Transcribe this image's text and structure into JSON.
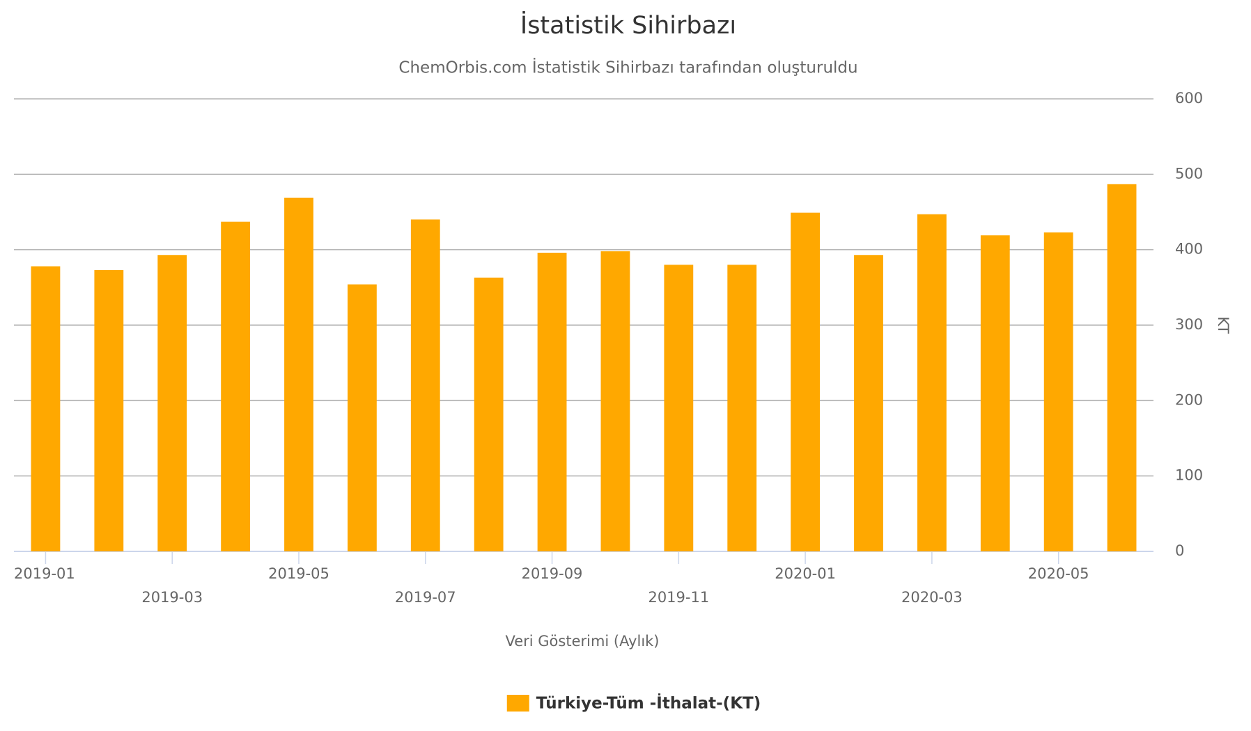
{
  "chart_data": {
    "type": "bar",
    "title": "İstatistik Sihirbazı",
    "subtitle": "ChemOrbis.com İstatistik Sihirbazı tarafından oluşturuldu",
    "x_label": "Veri Gösterimi (Aylık)",
    "y_label": "KT",
    "categories": [
      "2019-01",
      null,
      "2019-03",
      null,
      "2019-05",
      null,
      "2019-07",
      null,
      "2019-09",
      null,
      "2019-11",
      null,
      "2020-01",
      null,
      "2020-03",
      null,
      "2020-05",
      null
    ],
    "series": [
      {
        "name": "Türkiye-Tüm -İthalat-(KT)",
        "color": "#ffa800",
        "values": [
          378,
          373,
          393,
          437,
          469,
          354,
          440,
          363,
          396,
          398,
          380,
          380,
          449,
          393,
          447,
          419,
          423,
          487
        ]
      }
    ],
    "ylim": [
      0,
      600
    ],
    "yticks": [
      0,
      100,
      200,
      300,
      400,
      500,
      600
    ],
    "grid": true
  }
}
